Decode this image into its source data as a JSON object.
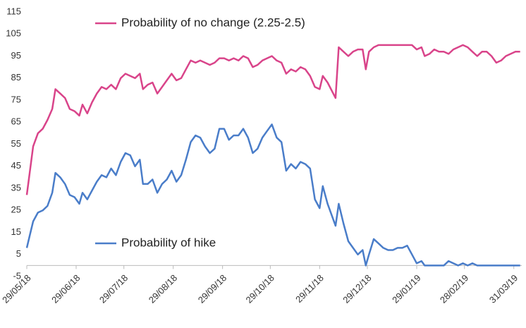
{
  "chart_data": {
    "type": "line",
    "x": [
      "2018-05-29",
      "2018-05-31",
      "2018-06-02",
      "2018-06-05",
      "2018-06-08",
      "2018-06-11",
      "2018-06-14",
      "2018-06-16",
      "2018-06-19",
      "2018-06-22",
      "2018-06-25",
      "2018-06-28",
      "2018-07-01",
      "2018-07-03",
      "2018-07-06",
      "2018-07-09",
      "2018-07-12",
      "2018-07-15",
      "2018-07-18",
      "2018-07-21",
      "2018-07-24",
      "2018-07-27",
      "2018-07-30",
      "2018-08-02",
      "2018-08-05",
      "2018-08-08",
      "2018-08-10",
      "2018-08-13",
      "2018-08-16",
      "2018-08-19",
      "2018-08-22",
      "2018-08-25",
      "2018-08-28",
      "2018-08-31",
      "2018-09-03",
      "2018-09-06",
      "2018-09-09",
      "2018-09-12",
      "2018-09-15",
      "2018-09-18",
      "2018-09-21",
      "2018-09-24",
      "2018-09-27",
      "2018-09-30",
      "2018-10-03",
      "2018-10-06",
      "2018-10-09",
      "2018-10-12",
      "2018-10-15",
      "2018-10-18",
      "2018-10-21",
      "2018-10-24",
      "2018-10-27",
      "2018-10-30",
      "2018-11-02",
      "2018-11-05",
      "2018-11-08",
      "2018-11-11",
      "2018-11-14",
      "2018-11-17",
      "2018-11-20",
      "2018-11-23",
      "2018-11-26",
      "2018-11-29",
      "2018-12-01",
      "2018-12-04",
      "2018-12-09",
      "2018-12-11",
      "2018-12-14",
      "2018-12-17",
      "2018-12-20",
      "2018-12-23",
      "2018-12-26",
      "2018-12-28",
      "2018-12-30",
      "2019-01-02",
      "2019-01-05",
      "2019-01-08",
      "2019-01-11",
      "2019-01-14",
      "2019-01-17",
      "2019-01-20",
      "2019-01-23",
      "2019-01-26",
      "2019-01-29",
      "2019-02-01",
      "2019-02-03",
      "2019-02-06",
      "2019-02-09",
      "2019-02-12",
      "2019-02-15",
      "2019-02-18",
      "2019-02-21",
      "2019-02-24",
      "2019-02-27",
      "2019-03-02",
      "2019-03-05",
      "2019-03-08",
      "2019-03-11",
      "2019-03-14",
      "2019-03-17",
      "2019-03-20",
      "2019-03-23",
      "2019-03-26",
      "2019-03-29",
      "2019-04-01",
      "2019-04-04"
    ],
    "series": [
      {
        "name": "Probability of no change (2.25-2.5)",
        "color": "#d9448a",
        "values": [
          32,
          43,
          54,
          60,
          62,
          66,
          71,
          80,
          78,
          76,
          71,
          70,
          68,
          73,
          69,
          74,
          78,
          81,
          80,
          82,
          80,
          85,
          87,
          86,
          85,
          87,
          80,
          82,
          83,
          78,
          81,
          84,
          87,
          84,
          85,
          89,
          93,
          92,
          93,
          92,
          91,
          92,
          94,
          94,
          93,
          94,
          93,
          95,
          94,
          90,
          91,
          93,
          94,
          95,
          93,
          92,
          87,
          89,
          88,
          90,
          89,
          86,
          81,
          80,
          86,
          83,
          76,
          99,
          97,
          95,
          97,
          98,
          98,
          89,
          97,
          99,
          100,
          100,
          100,
          100,
          100,
          100,
          100,
          100,
          98,
          99,
          95,
          96,
          98,
          97,
          97,
          96,
          98,
          99,
          100,
          99,
          97,
          95,
          97,
          97,
          95,
          92,
          93,
          95,
          96,
          97,
          97
        ]
      },
      {
        "name": "Probability of hike",
        "color": "#4a7dc9",
        "values": [
          8,
          14,
          20,
          24,
          25,
          27,
          33,
          42,
          40,
          37,
          32,
          31,
          28,
          33,
          30,
          34,
          38,
          41,
          40,
          44,
          41,
          47,
          51,
          50,
          45,
          48,
          37,
          37,
          39,
          33,
          37,
          39,
          43,
          38,
          41,
          48,
          56,
          59,
          58,
          54,
          51,
          53,
          62,
          62,
          57,
          59,
          59,
          62,
          58,
          51,
          53,
          58,
          61,
          64,
          58,
          56,
          43,
          46,
          44,
          47,
          46,
          44,
          30,
          26,
          36,
          28,
          18,
          28,
          19,
          11,
          8,
          5,
          7,
          0,
          5,
          12,
          10,
          8,
          7,
          7,
          8,
          8,
          9,
          5,
          1,
          2,
          0,
          0,
          0,
          0,
          0,
          2,
          1,
          0,
          1,
          0,
          1,
          0,
          0,
          0,
          0,
          0,
          0,
          0,
          0,
          0,
          0
        ]
      }
    ],
    "xlim": [
      "2018-05-29",
      "2019-04-05"
    ],
    "xticks": [
      {
        "value": "2018-05-29",
        "label": "29/05/18"
      },
      {
        "value": "2018-06-29",
        "label": "29/06/18"
      },
      {
        "value": "2018-07-29",
        "label": "29/07/18"
      },
      {
        "value": "2018-08-29",
        "label": "29/08/18"
      },
      {
        "value": "2018-09-29",
        "label": "29/09/18"
      },
      {
        "value": "2018-10-29",
        "label": "29/10/18"
      },
      {
        "value": "2018-11-29",
        "label": "29/11/18"
      },
      {
        "value": "2018-12-29",
        "label": "29/12/18"
      },
      {
        "value": "2019-01-29",
        "label": "29/01/19"
      },
      {
        "value": "2019-02-28",
        "label": "28/02/19"
      },
      {
        "value": "2019-03-31",
        "label": "31/03/19"
      }
    ],
    "ylim": [
      -5,
      115
    ],
    "yticks": [
      -5,
      5,
      15,
      25,
      35,
      45,
      55,
      65,
      75,
      85,
      95,
      105,
      115
    ]
  }
}
